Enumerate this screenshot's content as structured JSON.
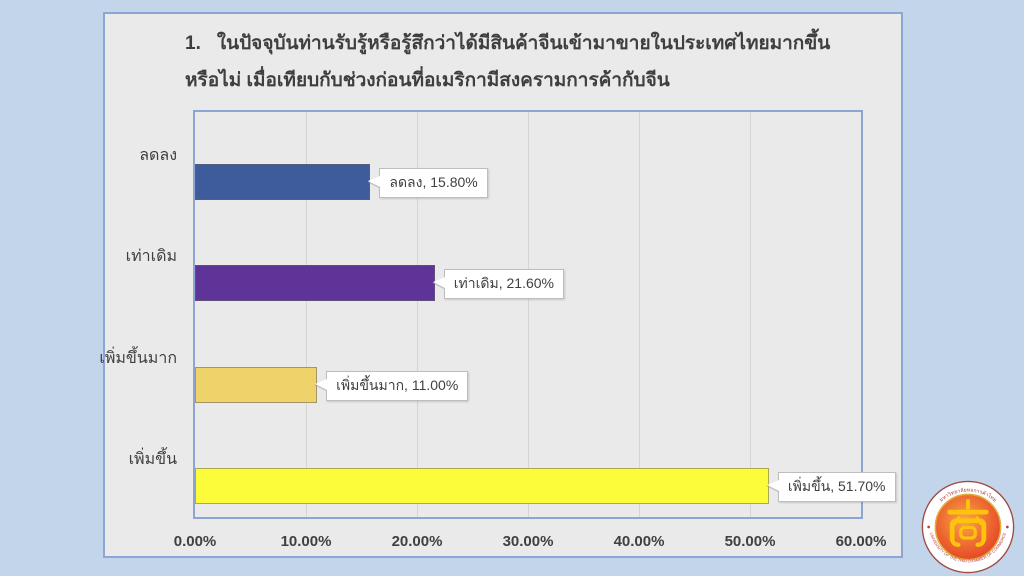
{
  "page": {
    "background_color": "#c3d5eb"
  },
  "chart_data": {
    "type": "bar",
    "orientation": "horizontal",
    "title": {
      "number": "1.",
      "line1": "ในปัจจุบันท่านรับรู้หรือรู้สึกว่าได้มีสินค้าจีนเข้ามาขายในประเทศไทยมากขึ้น",
      "line2": "หรือไม่ เมื่อเทียบกับช่วงก่อนที่อเมริกามีสงครามการค้ากับจีน"
    },
    "categories": [
      "ลดลง",
      "เท่าเดิม",
      "เพิ่มขึ้นมาก",
      "เพิ่มขึ้น"
    ],
    "values": [
      15.8,
      21.6,
      11.0,
      51.7
    ],
    "data_labels": [
      "ลดลง, 15.80%",
      "เท่าเดิม, 21.60%",
      "เพิ่มขึ้นมาก, 11.00%",
      "เพิ่มขึ้น, 51.70%"
    ],
    "bar_colors": [
      "#3e5c9b",
      "#5f3499",
      "#eed26a",
      "#fcfc3a"
    ],
    "x_ticks": [
      "0.00%",
      "10.00%",
      "20.00%",
      "30.00%",
      "40.00%",
      "50.00%",
      "60.00%"
    ],
    "xlim": [
      0,
      60
    ],
    "grid": true,
    "legend": false,
    "plot_border_color": "#8da5d3",
    "frame_background": "#eaeaea"
  },
  "logo": {
    "ring_text_top": "มหาวิทยาลัยหอการค้าไทย",
    "ring_text_bottom": "UNIVERSITY OF THE THAI CHAMBER OF COMMERCE",
    "glyph": "商"
  }
}
